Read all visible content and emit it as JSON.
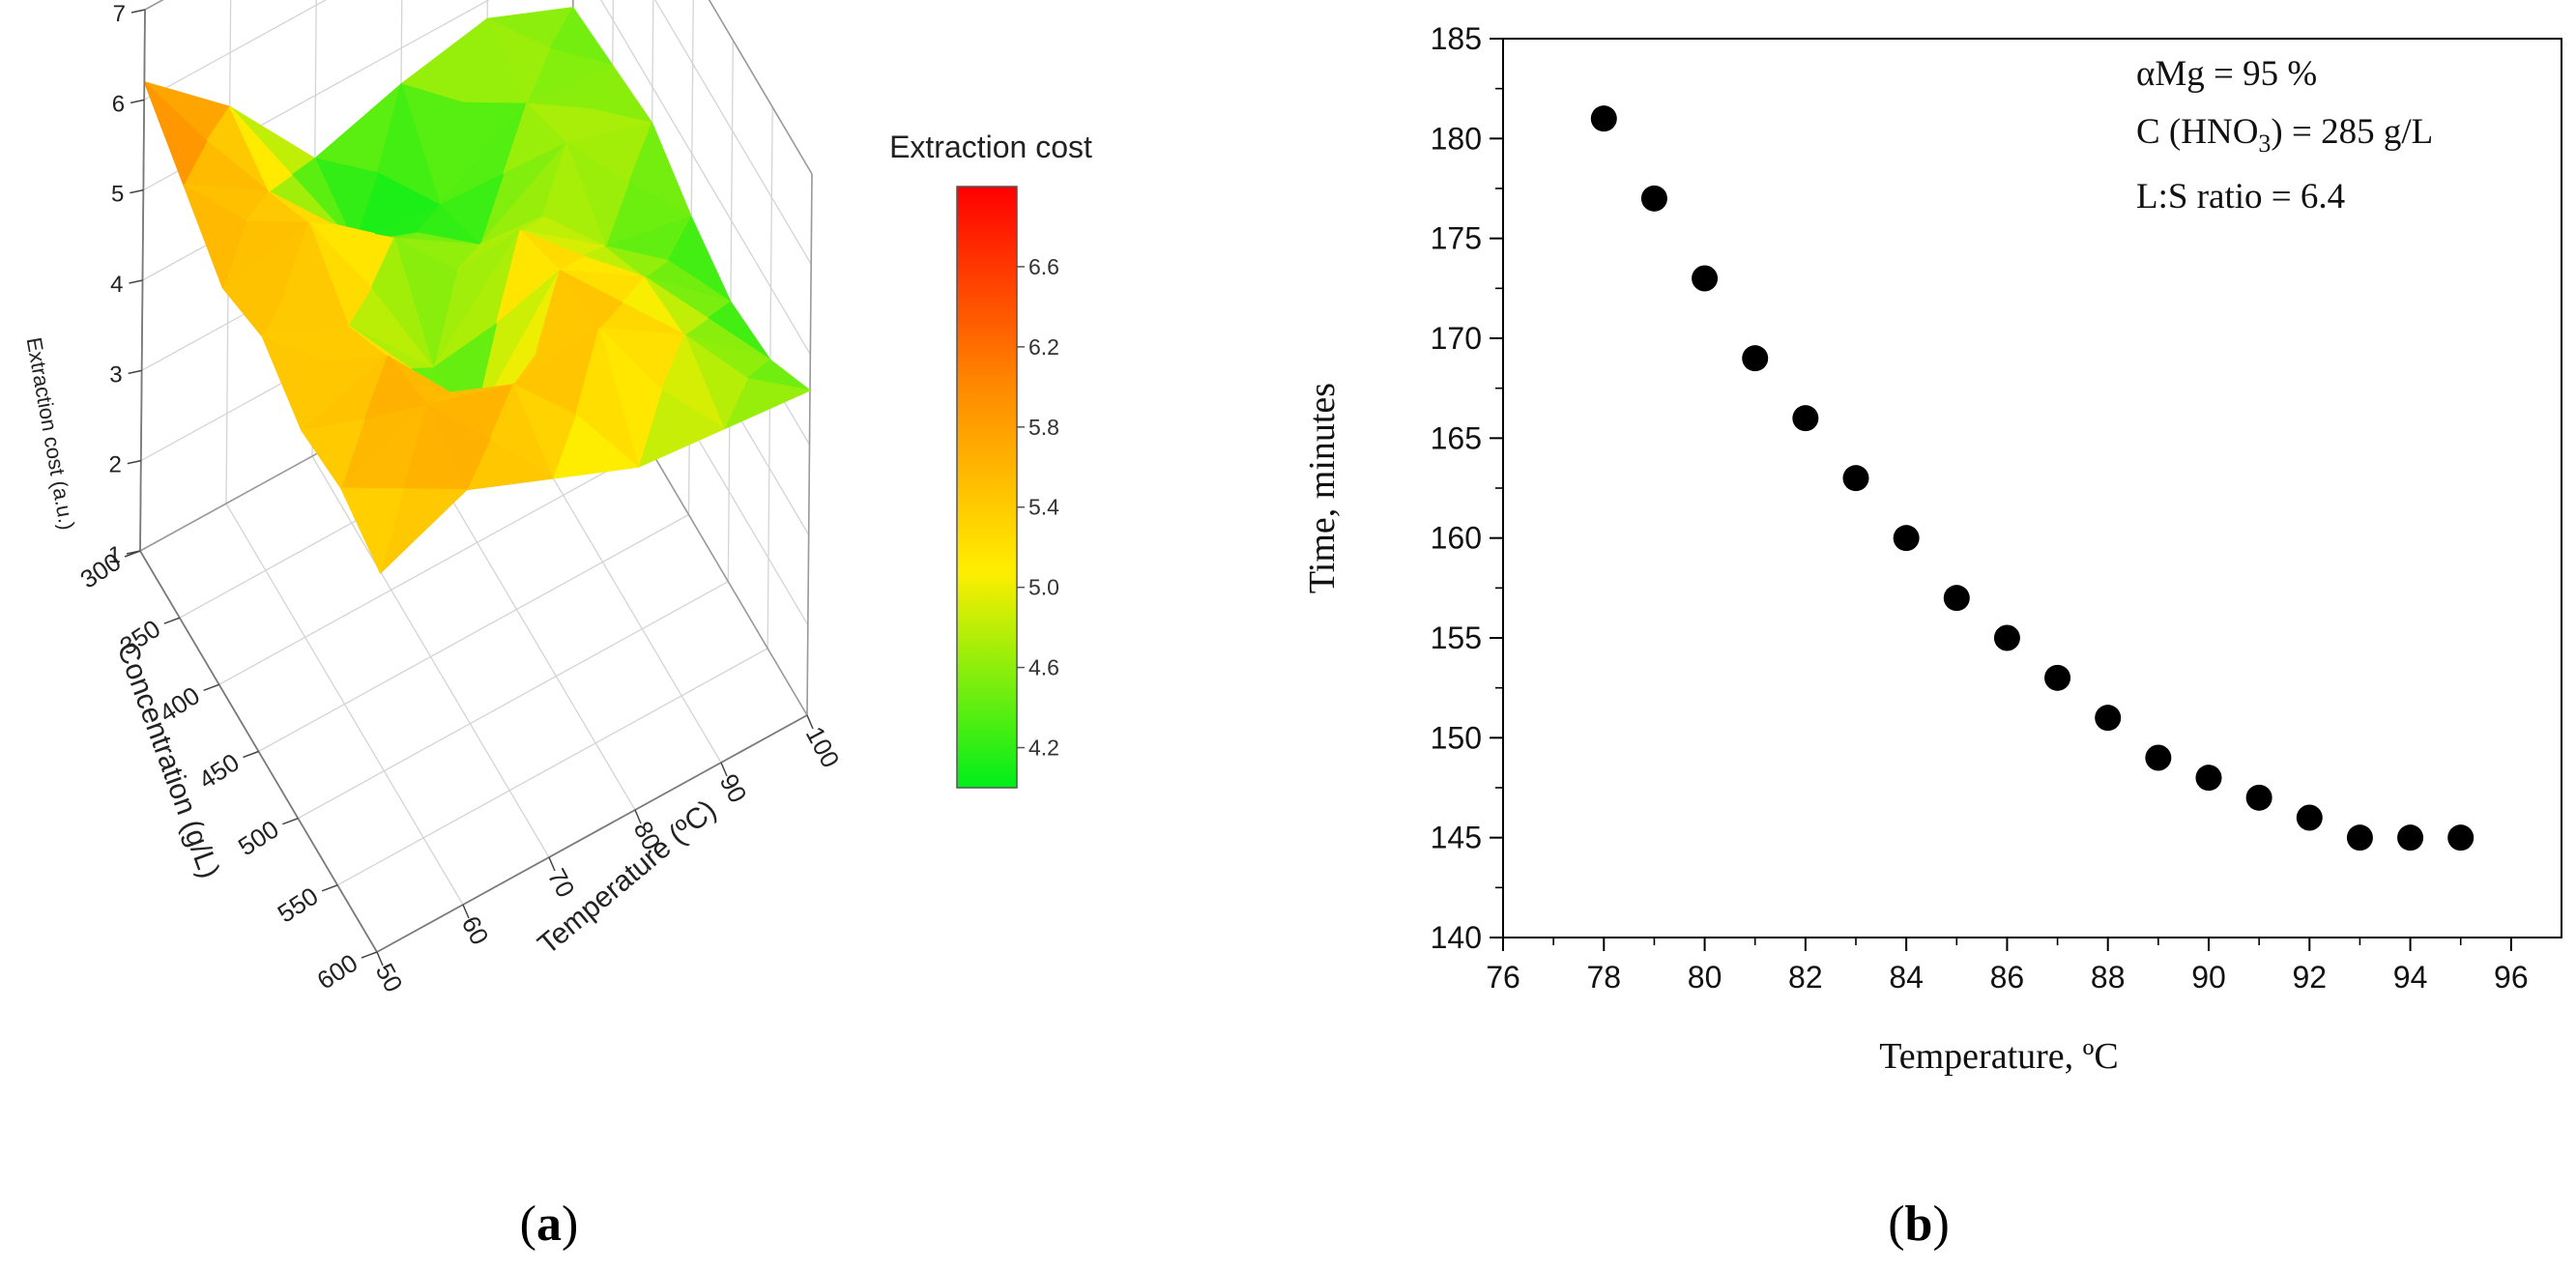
{
  "panels": {
    "a": {
      "label_open": "(",
      "letter": "a",
      "label_close": ")"
    },
    "b": {
      "label_open": "(",
      "letter": "b",
      "label_close": ")"
    }
  },
  "chart_data": [
    {
      "type": "surface3d",
      "title": "",
      "xlabel": "Temperature (ºC)",
      "ylabel": "Concentration (g/L)",
      "zlabel": "Extraction cost (a.u.)",
      "x_ticks": [
        "50",
        "60",
        "70",
        "80",
        "90",
        "100"
      ],
      "y_ticks": [
        "300",
        "350",
        "400",
        "450",
        "500",
        "550",
        "600"
      ],
      "z_ticks": [
        "1",
        "2",
        "3",
        "4",
        "5",
        "6",
        "7"
      ],
      "xlim": [
        50,
        100
      ],
      "ylim": [
        300,
        600
      ],
      "zlim": [
        1,
        7
      ],
      "x_grid": [
        50,
        60,
        70,
        80,
        90,
        100
      ],
      "y_grid": [
        300,
        350,
        400,
        450,
        500,
        550,
        600
      ],
      "z_values": [
        [
          6.2,
          5.4,
          4.3,
          4.6,
          4.8,
          4.4
        ],
        [
          5.8,
          5.2,
          4.1,
          4.0,
          4.6,
          4.5
        ],
        [
          5.4,
          5.6,
          4.9,
          4.3,
          4.9,
          4.6
        ],
        [
          5.6,
          5.2,
          4.2,
          5.2,
          4.5,
          4.3
        ],
        [
          5.3,
          5.6,
          4.3,
          5.5,
          4.9,
          4.1
        ],
        [
          5.4,
          5.8,
          5.5,
          5.6,
          5.0,
          4.2
        ],
        [
          5.2,
          5.6,
          5.2,
          4.8,
          4.7,
          4.6
        ]
      ],
      "colorbar": {
        "title": "Extraction cost",
        "ticks": [
          "4.2",
          "4.6",
          "5.0",
          "5.4",
          "5.8",
          "6.2",
          "6.6"
        ],
        "range": [
          4.0,
          7.0
        ],
        "colors": [
          "#00ee1a",
          "#ffee00",
          "#ff8c00",
          "#ff0000"
        ]
      }
    },
    {
      "type": "scatter",
      "title": "",
      "xlabel": "Temperature, ºC",
      "ylabel": "Time, minutes",
      "xlim": [
        76,
        97
      ],
      "ylim": [
        140,
        185
      ],
      "x_ticks": [
        "76",
        "78",
        "80",
        "82",
        "84",
        "86",
        "88",
        "90",
        "92",
        "94",
        "96"
      ],
      "y_ticks": [
        "140",
        "145",
        "150",
        "155",
        "160",
        "165",
        "170",
        "175",
        "180",
        "185"
      ],
      "x": [
        78,
        79,
        80,
        81,
        82,
        83,
        84,
        85,
        86,
        87,
        88,
        89,
        90,
        91,
        92,
        93,
        94,
        95
      ],
      "y": [
        181,
        177,
        173,
        169,
        166,
        163,
        160,
        157,
        155,
        153,
        151,
        149,
        148,
        147,
        146,
        145,
        145,
        145
      ],
      "marker_color": "#000000",
      "annotations": {
        "line1": "αMg = 95 %",
        "line2_prefix": "C (HNO",
        "line2_sub": "3",
        "line2_suffix": ") = 285 g/L",
        "line3": "L:S ratio = 6.4"
      }
    }
  ]
}
